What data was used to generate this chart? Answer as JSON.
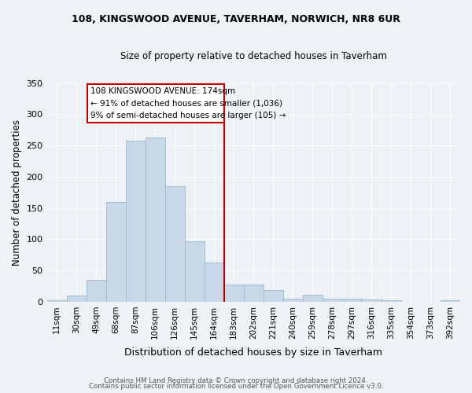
{
  "title_line1": "108, KINGSWOOD AVENUE, TAVERHAM, NORWICH, NR8 6UR",
  "title_line2": "Size of property relative to detached houses in Taverham",
  "xlabel": "Distribution of detached houses by size in Taverham",
  "ylabel": "Number of detached properties",
  "categories": [
    "11sqm",
    "30sqm",
    "49sqm",
    "68sqm",
    "87sqm",
    "106sqm",
    "126sqm",
    "145sqm",
    "164sqm",
    "183sqm",
    "202sqm",
    "221sqm",
    "240sqm",
    "259sqm",
    "278sqm",
    "297sqm",
    "316sqm",
    "335sqm",
    "354sqm",
    "373sqm",
    "392sqm"
  ],
  "values": [
    2,
    10,
    35,
    160,
    258,
    263,
    185,
    97,
    63,
    27,
    27,
    19,
    5,
    11,
    5,
    5,
    4,
    2,
    0,
    0,
    3
  ],
  "bar_color": "#c8d8e8",
  "bar_edge_color": "#a0bcd0",
  "vline_color": "#c00000",
  "annotation_text": "108 KINGSWOOD AVENUE: 174sqm\n← 91% of detached houses are smaller (1,036)\n9% of semi-detached houses are larger (105) →",
  "annotation_box_color": "#c00000",
  "annotation_text_color": "#000000",
  "ylim": [
    0,
    350
  ],
  "yticks": [
    0,
    50,
    100,
    150,
    200,
    250,
    300,
    350
  ],
  "background_color": "#eef2f7",
  "grid_color": "#ffffff",
  "footer_line1": "Contains HM Land Registry data © Crown copyright and database right 2024.",
  "footer_line2": "Contains public sector information licensed under the Open Government Licence v3.0."
}
